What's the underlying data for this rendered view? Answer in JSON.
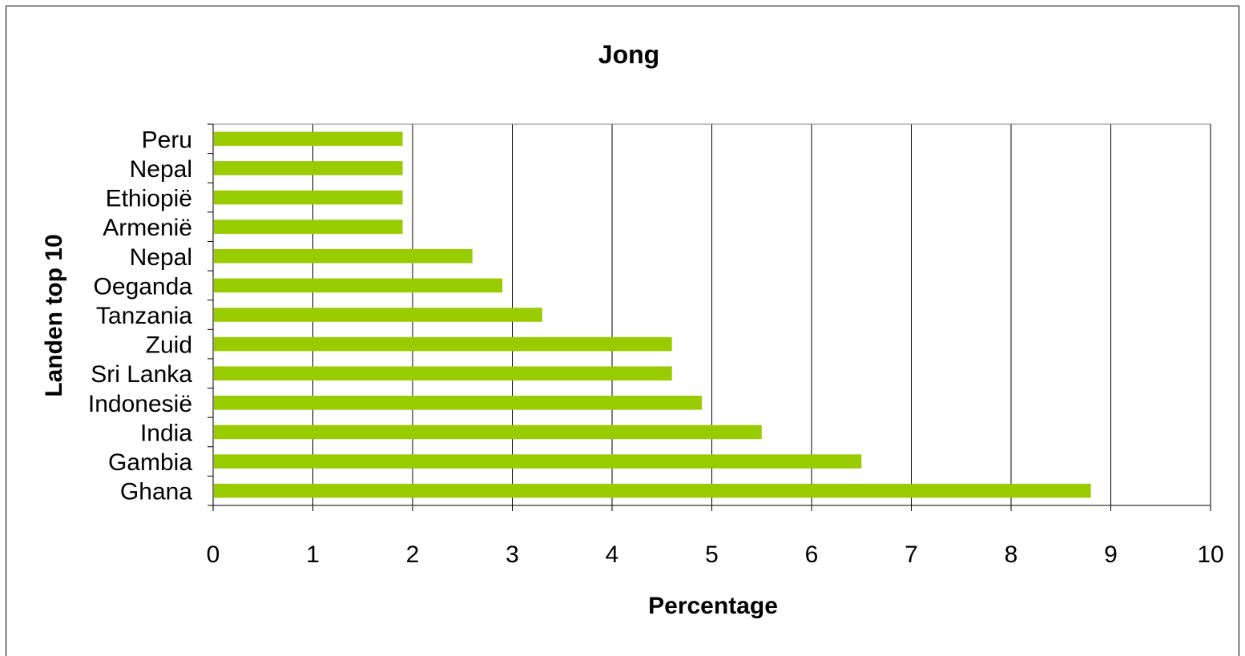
{
  "chart_data": {
    "type": "bar",
    "orientation": "horizontal",
    "title": "Jong",
    "xlabel": "Percentage",
    "ylabel": "Landen top 10",
    "categories": [
      "Ghana",
      "Gambia",
      "India",
      "Indonesië",
      "Sri Lanka",
      "Zuid",
      "Tanzania",
      "Oeganda",
      "Nepal",
      "Armenië",
      "Ethiopië",
      "Nepal",
      "Peru"
    ],
    "values": [
      8.8,
      6.5,
      5.5,
      4.9,
      4.6,
      4.6,
      3.3,
      2.9,
      2.6,
      1.9,
      1.9,
      1.9,
      1.9
    ],
    "xlim": [
      0,
      10
    ],
    "xticks": [
      "0",
      "1",
      "2",
      "3",
      "4",
      "5",
      "6",
      "7",
      "8",
      "9",
      "10"
    ],
    "grid": "vertical",
    "bar_color": "#99cc00",
    "legend": "none"
  }
}
